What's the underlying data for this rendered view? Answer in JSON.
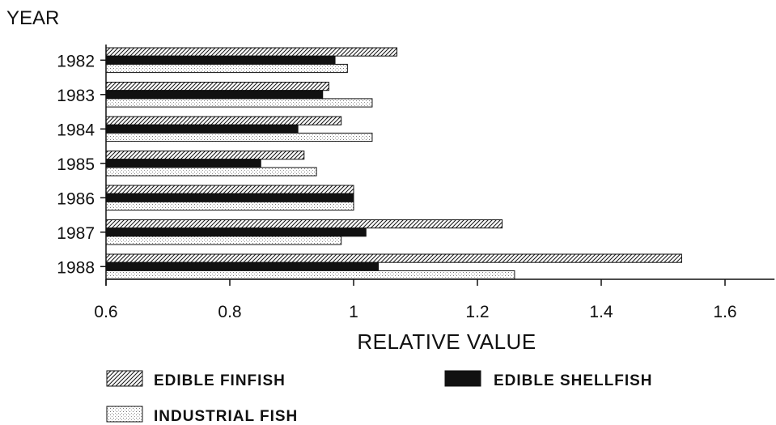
{
  "chart_data": {
    "type": "bar",
    "orientation": "horizontal",
    "ylabel": "YEAR",
    "xlabel": "RELATIVE VALUE",
    "categories": [
      "1982",
      "1983",
      "1984",
      "1985",
      "1986",
      "1987",
      "1988"
    ],
    "series": [
      {
        "name": "EDIBLE FINFISH",
        "pattern": "hatched",
        "values": [
          1.07,
          0.96,
          0.98,
          0.92,
          1.0,
          1.24,
          1.53
        ]
      },
      {
        "name": "EDIBLE SHELLFISH",
        "pattern": "solid-black",
        "values": [
          0.97,
          0.95,
          0.91,
          0.85,
          1.0,
          1.02,
          1.04
        ]
      },
      {
        "name": "INDUSTRIAL FISH",
        "pattern": "dotted",
        "values": [
          0.99,
          1.03,
          1.03,
          0.94,
          1.0,
          0.98,
          1.26
        ]
      }
    ],
    "xlim": [
      0.6,
      1.68
    ],
    "xticks": [
      0.6,
      0.8,
      1.0,
      1.2,
      1.4,
      1.6
    ],
    "xtick_labels": [
      "0.6",
      "0.8",
      "1",
      "1.2",
      "1.4",
      "1.6"
    ],
    "grid": false,
    "legend_position": "bottom"
  }
}
